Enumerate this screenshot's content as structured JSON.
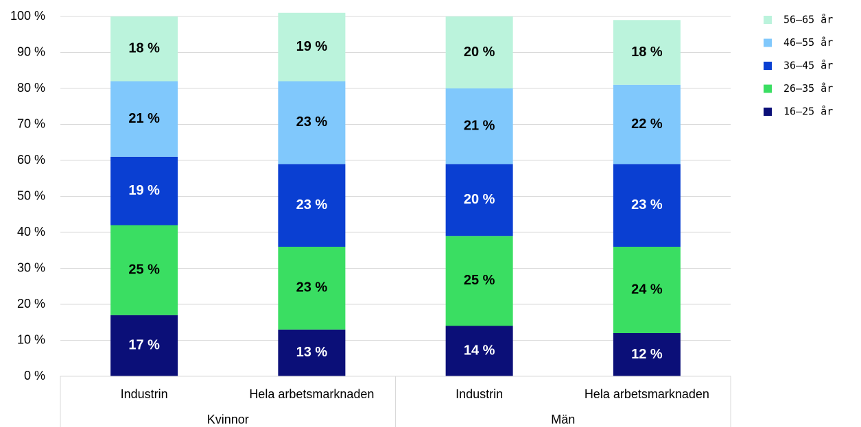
{
  "chart_data": {
    "type": "stacked_bar",
    "categories": [
      "Industrin",
      "Hela arbetsmarknaden",
      "Industrin",
      "Hela arbetsmarknaden"
    ],
    "groups": [
      "Kvinnor",
      "Män"
    ],
    "series": [
      {
        "name": "16–25 år",
        "color": "#0b0f78",
        "label_color": "#ffffff",
        "values": [
          17,
          13,
          14,
          12
        ],
        "value_labels": [
          "17 %",
          "13 %",
          "14 %",
          "12 %"
        ]
      },
      {
        "name": "26–35 år",
        "color": "#3ade62",
        "label_color": "#000000",
        "values": [
          25,
          23,
          25,
          24
        ],
        "value_labels": [
          "25 %",
          "23 %",
          "25 %",
          "24 %"
        ]
      },
      {
        "name": "36–45 år",
        "color": "#0a3fd2",
        "label_color": "#ffffff",
        "values": [
          19,
          23,
          20,
          23
        ],
        "value_labels": [
          "19 %",
          "23 %",
          "20 %",
          "23 %"
        ]
      },
      {
        "name": "46–55 år",
        "color": "#80c8fc",
        "label_color": "#000000",
        "values": [
          21,
          23,
          21,
          22
        ],
        "value_labels": [
          "21 %",
          "23 %",
          "21 %",
          "22 %"
        ]
      },
      {
        "name": "56–65 år",
        "color": "#bbf3dc",
        "label_color": "#000000",
        "values": [
          18,
          19,
          20,
          18
        ],
        "value_labels": [
          "18 %",
          "19 %",
          "20 %",
          "18 %"
        ]
      }
    ],
    "ylim": [
      0,
      100
    ],
    "yticks": [
      {
        "value": 0,
        "label": "0 %"
      },
      {
        "value": 10,
        "label": "10 %"
      },
      {
        "value": 20,
        "label": "20 %"
      },
      {
        "value": 30,
        "label": "30 %"
      },
      {
        "value": 40,
        "label": "40 %"
      },
      {
        "value": 50,
        "label": "50 %"
      },
      {
        "value": 60,
        "label": "60 %"
      },
      {
        "value": 70,
        "label": "70 %"
      },
      {
        "value": 80,
        "label": "80 %"
      },
      {
        "value": 90,
        "label": "90 %"
      },
      {
        "value": 100,
        "label": "100 %"
      }
    ],
    "grid": true,
    "legend": "right"
  }
}
